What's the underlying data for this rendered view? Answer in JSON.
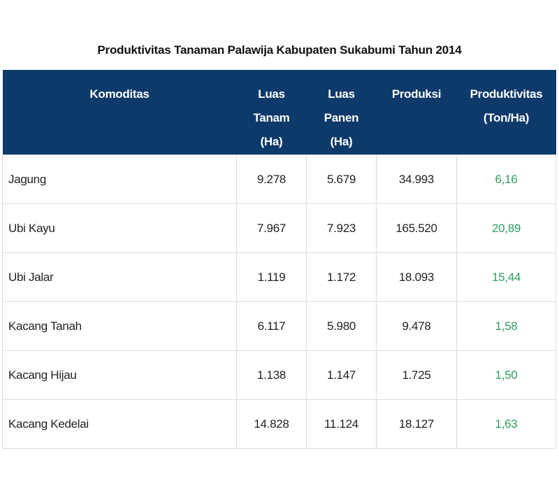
{
  "title": "Produktivitas Tanaman Palawija Kabupaten Sukabumi Tahun 2014",
  "colors": {
    "header_bg": "#0d3a6b",
    "header_text": "#ffffff",
    "productivity_text": "#2e9e5e",
    "grid_line": "#dcdcdc"
  },
  "table": {
    "headers": [
      {
        "line1": "Komoditas",
        "line2": ""
      },
      {
        "line1": "Luas Tanam",
        "line2": "(Ha)"
      },
      {
        "line1": "Luas Panen",
        "line2": "(Ha)"
      },
      {
        "line1": "Produksi",
        "line2": ""
      },
      {
        "line1": "Produktivitas",
        "line2": "(Ton/Ha)"
      }
    ],
    "rows": [
      {
        "komoditas": "Jagung",
        "luas_tanam": "9.278",
        "luas_panen": "5.679",
        "produksi": "34.993",
        "produktivitas": "6,16"
      },
      {
        "komoditas": "Ubi Kayu",
        "luas_tanam": "7.967",
        "luas_panen": "7.923",
        "produksi": "165.520",
        "produktivitas": "20,89"
      },
      {
        "komoditas": "Ubi Jalar",
        "luas_tanam": "1.119",
        "luas_panen": "1.172",
        "produksi": "18.093",
        "produktivitas": "15,44"
      },
      {
        "komoditas": "Kacang Tanah",
        "luas_tanam": "6.117",
        "luas_panen": "5.980",
        "produksi": "9.478",
        "produktivitas": "1,58"
      },
      {
        "komoditas": "Kacang Hijau",
        "luas_tanam": "1.138",
        "luas_panen": "1.147",
        "produksi": "1.725",
        "produktivitas": "1,50"
      },
      {
        "komoditas": "Kacang Kedelai",
        "luas_tanam": "14.828",
        "luas_panen": "11.124",
        "produksi": "18.127",
        "produktivitas": "1,63"
      }
    ]
  }
}
